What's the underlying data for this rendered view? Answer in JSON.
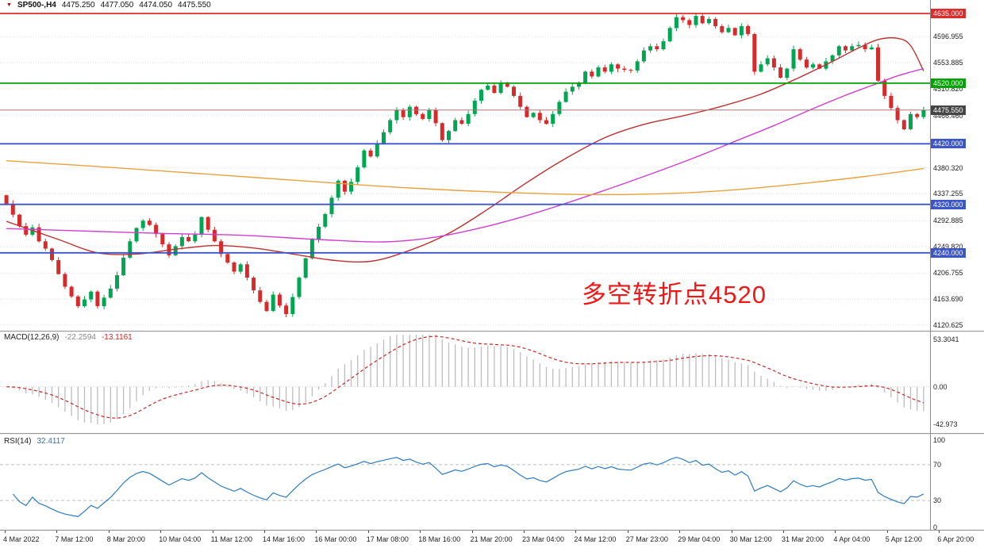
{
  "header": {
    "marker": "▼",
    "symbol_period": "SP500-,H4",
    "open": "4475.250",
    "high": "4477.050",
    "low": "4474.050",
    "close": "4475.550"
  },
  "annotation": {
    "text": "多空转折点4520",
    "color": "#f21616"
  },
  "colors": {
    "up_candle": "#00a651",
    "down_candle": "#d62b2b",
    "macd_histogram": "#bdbdbd",
    "macd_signal": "#cc2525",
    "rsi_line": "#2e7bbf",
    "grid": "#e2e2e2"
  },
  "price_axis": {
    "grid_labels": [
      "4596.955",
      "4553.885",
      "4510.820",
      "4466.460",
      "4380.320",
      "4337.255",
      "4292.885",
      "4249.820",
      "4206.755",
      "4163.690",
      "4120.625"
    ],
    "level_lines": [
      {
        "label": "4635.000",
        "value": 4635.0,
        "color": "#e02b2b"
      },
      {
        "label": "4520.000",
        "value": 4520.0,
        "color": "#00a400"
      },
      {
        "label": "4420.000",
        "value": 4420.0,
        "color": "#3c55c8"
      },
      {
        "label": "4320.000",
        "value": 4320.0,
        "color": "#3c55c8"
      },
      {
        "label": "4240.000",
        "value": 4240.0,
        "color": "#3c55c8"
      }
    ],
    "current_price": {
      "label": "4475.550",
      "value": 4475.55,
      "box_color": "#454545"
    }
  },
  "x_axis": {
    "labels": [
      "4 Mar 2022",
      "7 Mar 12:00",
      "8 Mar 20:00",
      "10 Mar 04:00",
      "11 Mar 12:00",
      "14 Mar 16:00",
      "16 Mar 00:00",
      "17 Mar 08:00",
      "18 Mar 16:00",
      "21 Mar 20:00",
      "23 Mar 04:00",
      "24 Mar 12:00",
      "27 Mar 23:00",
      "29 Mar 04:00",
      "30 Mar 12:00",
      "31 Mar 20:00",
      "4 Apr 04:00",
      "5 Apr 12:00",
      "6 Apr 20:00"
    ]
  },
  "panes": {
    "macd": {
      "label": "MACD(12,26,9)",
      "value1": "-22.2594",
      "value2": "-13.1161",
      "axis_top": "53.3041",
      "axis_zero": "0.00",
      "axis_bottom": "-42.973"
    },
    "rsi": {
      "label": "RSI(14)",
      "value": "32.4117",
      "axis": [
        "100",
        "70",
        "30",
        "0"
      ],
      "axis_values": [
        100,
        70,
        30,
        0
      ],
      "levels": [
        70,
        30
      ]
    }
  },
  "chart_data": {
    "type": "candlestick",
    "symbol": "SP500-",
    "timeframe": "H4",
    "title": "SP500- H4 candlestick chart with MACD(12,26,9) and RSI(14)",
    "ylim": [
      4120.625,
      4635.0
    ],
    "current_ohlc": {
      "open": 4475.25,
      "high": 4477.05,
      "low": 4474.05,
      "close": 4475.55
    },
    "first_open": 4335,
    "closes": [
      4321,
      4303,
      4284,
      4270,
      4282,
      4259,
      4247,
      4228,
      4205,
      4184,
      4168,
      4152,
      4163,
      4176,
      4152,
      4166,
      4181,
      4203,
      4232,
      4259,
      4281,
      4293,
      4286,
      4271,
      4254,
      4236,
      4251,
      4266,
      4259,
      4270,
      4299,
      4278,
      4259,
      4238,
      4224,
      4209,
      4221,
      4199,
      4178,
      4159,
      4144,
      4171,
      4153,
      4139,
      4167,
      4199,
      4231,
      4262,
      4283,
      4304,
      4331,
      4359,
      4341,
      4357,
      4381,
      4409,
      4399,
      4421,
      4439,
      4459,
      4476,
      4464,
      4481,
      4469,
      4461,
      4476,
      4454,
      4426,
      4441,
      4459,
      4453,
      4469,
      4491,
      4509,
      4516,
      4504,
      4519,
      4514,
      4499,
      4481,
      4464,
      4471,
      4459,
      4453,
      4469,
      4489,
      4506,
      4514,
      4521,
      4539,
      4531,
      4546,
      4539,
      4551,
      4544,
      4542,
      4541,
      4556,
      4574,
      4581,
      4576,
      4589,
      4611,
      4629,
      4624,
      4616,
      4631,
      4619,
      4626,
      4614,
      4604,
      4611,
      4599,
      4614,
      4601,
      4539,
      4551,
      4561,
      4546,
      4529,
      4544,
      4576,
      4559,
      4546,
      4551,
      4544,
      4556,
      4566,
      4581,
      4574,
      4581,
      4583,
      4576,
      4579,
      4524,
      4499,
      4479,
      4459,
      4444,
      4469,
      4464,
      4475.55
    ],
    "levels": {
      "resistance": 4635.0,
      "pivot": 4520.0,
      "supports": [
        4420.0,
        4320.0,
        4240.0
      ]
    },
    "moving_averages": [
      {
        "name": "ma-fast-red",
        "color": "#c03030",
        "points": [
          [
            0,
            4292
          ],
          [
            8,
            4262
          ],
          [
            14,
            4240
          ],
          [
            20,
            4238
          ],
          [
            26,
            4246
          ],
          [
            32,
            4252
          ],
          [
            38,
            4248
          ],
          [
            44,
            4238
          ],
          [
            50,
            4228
          ],
          [
            56,
            4226
          ],
          [
            62,
            4244
          ],
          [
            68,
            4272
          ],
          [
            74,
            4312
          ],
          [
            80,
            4356
          ],
          [
            86,
            4396
          ],
          [
            92,
            4430
          ],
          [
            98,
            4452
          ],
          [
            104,
            4466
          ],
          [
            110,
            4482
          ],
          [
            116,
            4502
          ],
          [
            122,
            4530
          ],
          [
            127,
            4556
          ],
          [
            131,
            4578
          ],
          [
            134,
            4592
          ],
          [
            137,
            4594
          ],
          [
            139,
            4582
          ],
          [
            141,
            4540
          ]
        ]
      },
      {
        "name": "ma-mid-magenta",
        "color": "#cf3ecf",
        "points": [
          [
            0,
            4280
          ],
          [
            12,
            4276
          ],
          [
            24,
            4272
          ],
          [
            36,
            4269
          ],
          [
            48,
            4262
          ],
          [
            58,
            4258
          ],
          [
            66,
            4266
          ],
          [
            74,
            4284
          ],
          [
            82,
            4308
          ],
          [
            90,
            4336
          ],
          [
            98,
            4366
          ],
          [
            106,
            4398
          ],
          [
            112,
            4424
          ],
          [
            118,
            4450
          ],
          [
            124,
            4478
          ],
          [
            129,
            4500
          ],
          [
            133,
            4516
          ],
          [
            137,
            4532
          ],
          [
            141,
            4544
          ]
        ]
      },
      {
        "name": "ma-slow-orange",
        "color": "#e8a23c",
        "points": [
          [
            0,
            4392
          ],
          [
            16,
            4381
          ],
          [
            32,
            4369
          ],
          [
            48,
            4357
          ],
          [
            62,
            4347
          ],
          [
            76,
            4340
          ],
          [
            90,
            4336
          ],
          [
            102,
            4338
          ],
          [
            112,
            4344
          ],
          [
            122,
            4354
          ],
          [
            132,
            4366
          ],
          [
            141,
            4379
          ]
        ]
      }
    ],
    "indicators": {
      "macd": {
        "fast": 12,
        "slow": 26,
        "signal": 9,
        "current_macd": -22.2594,
        "current_signal": -13.1161,
        "axis_range": [
          -42.973,
          53.3041
        ]
      },
      "rsi": {
        "period": 14,
        "current": 32.4117,
        "levels": [
          30,
          70
        ]
      }
    },
    "x_labels": [
      "4 Mar 2022",
      "7 Mar 12:00",
      "8 Mar 20:00",
      "10 Mar 04:00",
      "11 Mar 12:00",
      "14 Mar 16:00",
      "16 Mar 00:00",
      "17 Mar 08:00",
      "18 Mar 16:00",
      "21 Mar 20:00",
      "23 Mar 04:00",
      "24 Mar 12:00",
      "27 Mar 23:00",
      "29 Mar 04:00",
      "30 Mar 12:00",
      "31 Mar 20:00",
      "4 Apr 04:00",
      "5 Apr 12:00",
      "6 Apr 20:00"
    ]
  }
}
